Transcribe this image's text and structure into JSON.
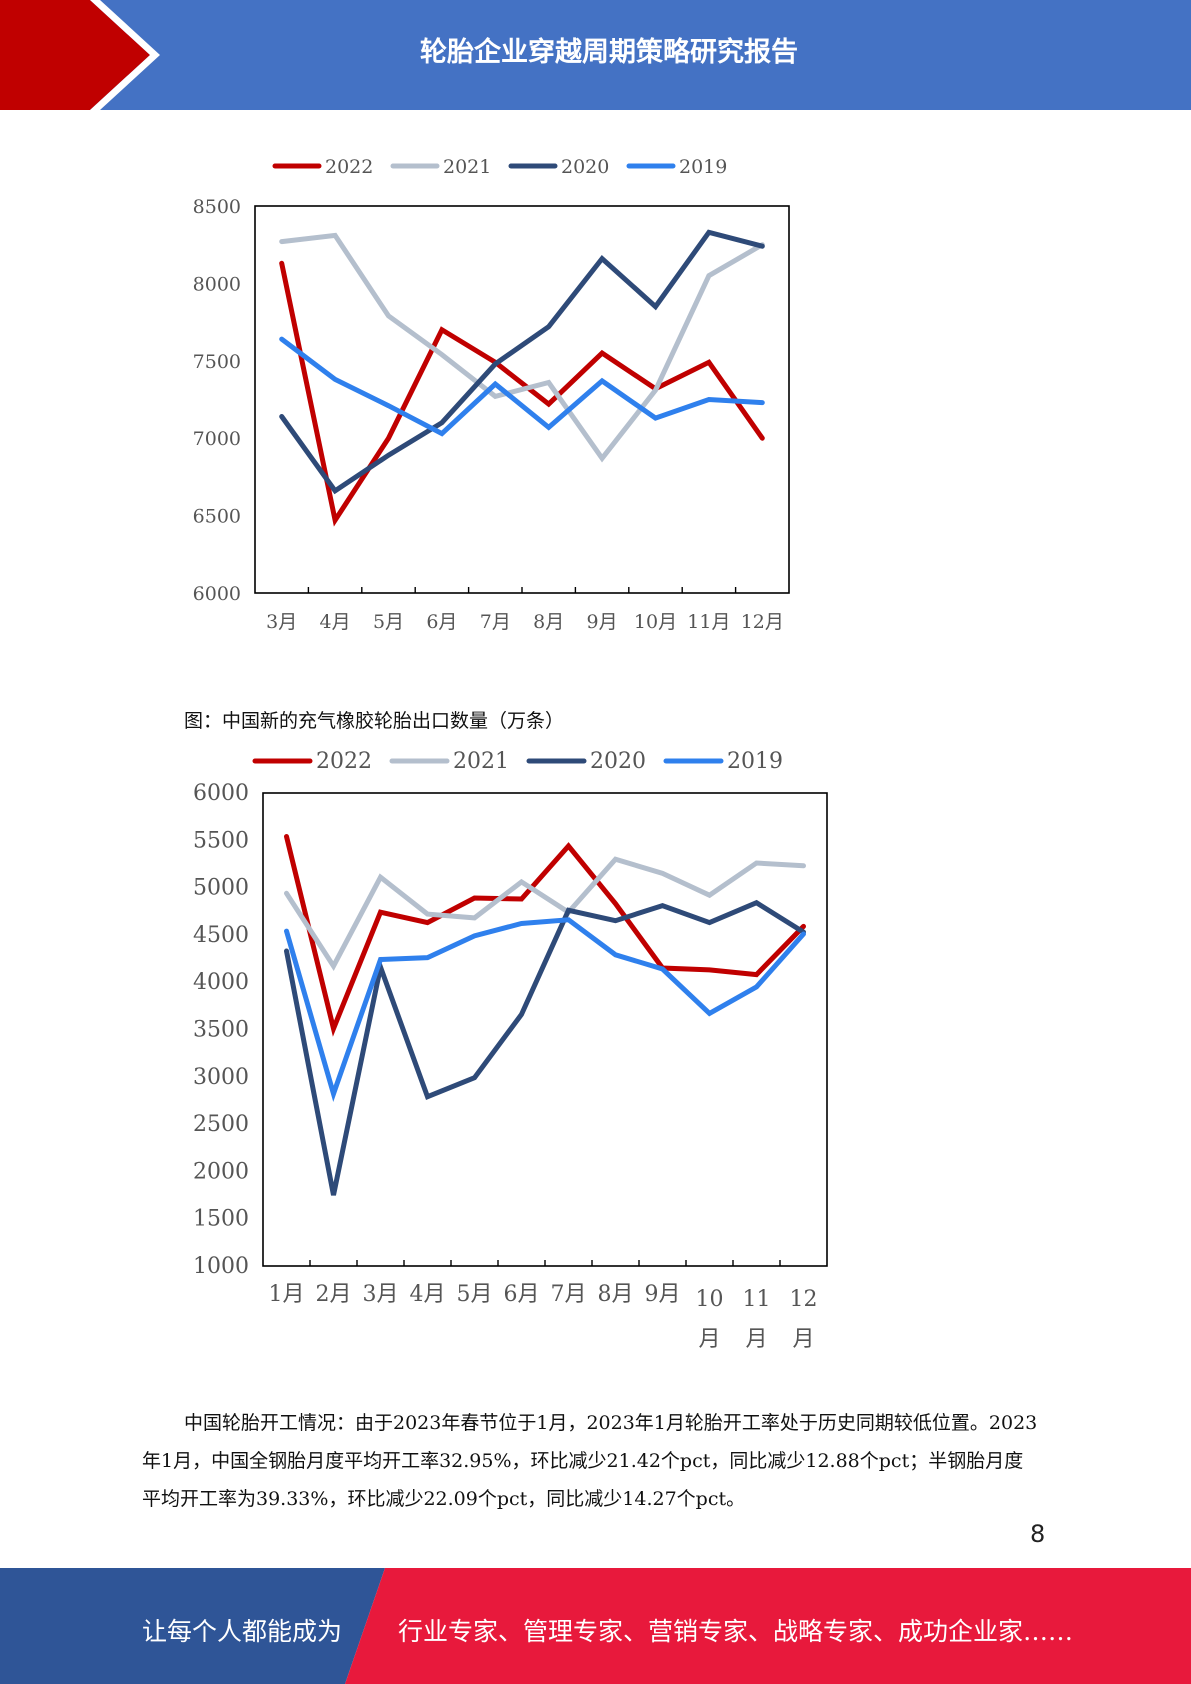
{
  "header": {
    "title": "轮胎企业穿越周期策略研究报告"
  },
  "colors": {
    "header_blue": "#4472c4",
    "header_red": "#c00000",
    "footer_blue": "#2f5597",
    "footer_red": "#e8193c"
  },
  "chart_top": {
    "chart_data": {
      "type": "line",
      "categories": [
        "3月",
        "4月",
        "5月",
        "6月",
        "7月",
        "8月",
        "9月",
        "10月",
        "11月",
        "12月"
      ],
      "series": [
        {
          "name": "2022",
          "color": "#c00000",
          "values": [
            8130,
            6470,
            7000,
            7700,
            7490,
            7220,
            7550,
            7320,
            7490,
            7000
          ]
        },
        {
          "name": "2021",
          "color": "#b4bfcd",
          "values": [
            8270,
            8310,
            7790,
            7540,
            7270,
            7360,
            6870,
            7310,
            8050,
            8250
          ]
        },
        {
          "name": "2020",
          "color": "#2e4a78",
          "values": [
            7140,
            6660,
            6890,
            7100,
            7480,
            7720,
            8160,
            7850,
            8330,
            8240
          ]
        },
        {
          "name": "2019",
          "color": "#2f80ed",
          "values": [
            7640,
            7380,
            7210,
            7030,
            7350,
            7070,
            7370,
            7130,
            7250,
            7230
          ]
        }
      ],
      "ylim": [
        6000,
        8500
      ],
      "yticks": [
        "8500",
        "8000",
        "7500",
        "7000",
        "6500",
        "6000"
      ],
      "legend": "top"
    }
  },
  "caption": "图：中国新的充气橡胶轮胎出口数量（万条）",
  "chart_bottom": {
    "chart_data": {
      "type": "line",
      "categories": [
        "1月",
        "2月",
        "3月",
        "4月",
        "5月",
        "6月",
        "7月",
        "8月",
        "9月",
        "10月",
        "11月",
        "12月"
      ],
      "series": [
        {
          "name": "2022",
          "color": "#c00000",
          "values": [
            5540,
            3510,
            4740,
            4630,
            4890,
            4880,
            5440,
            4830,
            4150,
            4130,
            4080,
            4590
          ]
        },
        {
          "name": "2021",
          "color": "#b4bfcd",
          "values": [
            4940,
            4170,
            5110,
            4720,
            4680,
            5060,
            4740,
            5300,
            5150,
            4920,
            5260,
            5230
          ]
        },
        {
          "name": "2020",
          "color": "#2e4a78",
          "values": [
            4330,
            1750,
            4160,
            2790,
            2990,
            3660,
            4760,
            4650,
            4810,
            4630,
            4840,
            4530
          ]
        },
        {
          "name": "2019",
          "color": "#2f80ed",
          "values": [
            4540,
            2820,
            4240,
            4260,
            4490,
            4620,
            4660,
            4290,
            4140,
            3670,
            3950,
            4510
          ]
        }
      ],
      "ylim": [
        1000,
        6000
      ],
      "yticks": [
        "6000",
        "5500",
        "5000",
        "4500",
        "4000",
        "3500",
        "3000",
        "2500",
        "2000",
        "1500",
        "1000"
      ],
      "legend": "top"
    }
  },
  "paragraph": "中国轮胎开工情况：由于2023年春节位于1月，2023年1月轮胎开工率处于历史同期较低位置。2023年1月，中国全钢胎月度平均开工率32.95%，环比减少21.42个pct，同比减少12.88个pct；半钢胎月度平均开工率为39.33%，环比减少22.09个pct，同比减少14.27个pct。",
  "page_number": "8",
  "footer": {
    "left_text": "让每个人都能成为",
    "right_text": "行业专家、管理专家、营销专家、战略专家、成功企业家……"
  }
}
